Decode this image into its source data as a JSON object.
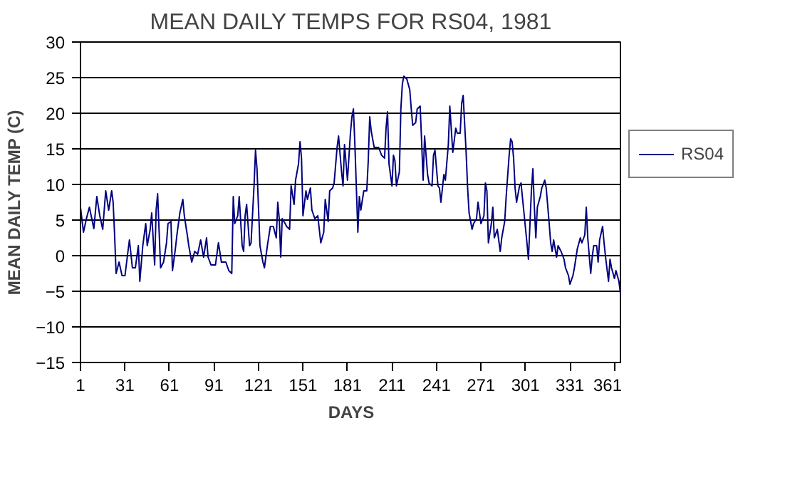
{
  "chart_data": {
    "type": "line",
    "title": "MEAN DAILY TEMPS FOR RS04, 1981",
    "xlabel": "DAYS",
    "ylabel": "MEAN DAILY TEMP (C)",
    "x": [
      1,
      3,
      5,
      7,
      9,
      10,
      12,
      14,
      16,
      18,
      20,
      22,
      23,
      24,
      25,
      27,
      29,
      31,
      33,
      34,
      36,
      38,
      40,
      41,
      43,
      45,
      46,
      48,
      49,
      51,
      52,
      53,
      55,
      57,
      59,
      60,
      62,
      63,
      65,
      66,
      68,
      70,
      71,
      73,
      74,
      76,
      78,
      80,
      82,
      84,
      86,
      87,
      89,
      92,
      94,
      96,
      99,
      101,
      103,
      104,
      105,
      107,
      108,
      110,
      111,
      112,
      113,
      115,
      116,
      118,
      119,
      120,
      121,
      122,
      124,
      125,
      127,
      129,
      131,
      133,
      134,
      135,
      136,
      137,
      139,
      140,
      142,
      143,
      145,
      146,
      148,
      149,
      150,
      151,
      153,
      154,
      156,
      157,
      159,
      161,
      163,
      165,
      166,
      168,
      169,
      171,
      172,
      174,
      175,
      177,
      178,
      179,
      181,
      183,
      184,
      185,
      186,
      188,
      189,
      190,
      192,
      194,
      195,
      196,
      197,
      199,
      202,
      204,
      206,
      207,
      208,
      209,
      211,
      212,
      213,
      214,
      216,
      217,
      218,
      219,
      221,
      223,
      224,
      225,
      227,
      228,
      230,
      231,
      232,
      233,
      235,
      236,
      238,
      239,
      240,
      242,
      243,
      244,
      246,
      247,
      249,
      250,
      252,
      254,
      255,
      257,
      258,
      259,
      261,
      262,
      263,
      265,
      266,
      268,
      269,
      271,
      273,
      274,
      275,
      276,
      278,
      279,
      280,
      282,
      284,
      285,
      287,
      288,
      290,
      291,
      292,
      293,
      294,
      295,
      297,
      298,
      300,
      302,
      303,
      305,
      306,
      307,
      308,
      309,
      311,
      312,
      314,
      315,
      317,
      318,
      319,
      320,
      322,
      323,
      325,
      327,
      328,
      330,
      331,
      333,
      334,
      336,
      338,
      339,
      341,
      342,
      343,
      345,
      346,
      347,
      349,
      350,
      351,
      353,
      354,
      355,
      357,
      358,
      359,
      361,
      362,
      364,
      365
    ],
    "series": [
      {
        "name": "RS04",
        "color": "#000080",
        "values": [
          6.8,
          3.3,
          5.2,
          6.8,
          4.8,
          3.8,
          8.3,
          5.6,
          3.7,
          9.1,
          6.4,
          9.1,
          7.5,
          2.9,
          -2.5,
          -0.9,
          -2.8,
          -2.8,
          0.6,
          2.2,
          -1.7,
          -1.7,
          1.4,
          -3.6,
          1.4,
          4.5,
          1.4,
          3.7,
          6.0,
          -1.3,
          6.4,
          8.7,
          -1.7,
          -0.9,
          1.8,
          4.5,
          4.8,
          -2.1,
          1.0,
          2.9,
          6.0,
          7.9,
          5.6,
          2.9,
          1.4,
          -0.9,
          0.6,
          0.2,
          2.2,
          -0.2,
          2.5,
          -0.2,
          -1.3,
          -1.3,
          1.8,
          -0.9,
          -0.9,
          -2.1,
          -2.5,
          8.3,
          4.5,
          5.6,
          8.3,
          1.4,
          0.6,
          5.6,
          7.2,
          1.4,
          1.8,
          9.8,
          14.8,
          12.2,
          6.8,
          1.4,
          -0.9,
          -1.7,
          1.4,
          4.1,
          4.1,
          2.5,
          7.5,
          5.2,
          -0.2,
          5.2,
          4.5,
          4.1,
          3.7,
          9.8,
          7.2,
          10.6,
          12.9,
          16.0,
          13.7,
          5.6,
          9.1,
          7.9,
          9.5,
          6.4,
          5.2,
          5.6,
          1.8,
          3.3,
          7.9,
          4.8,
          9.1,
          9.5,
          10.2,
          15.2,
          16.8,
          11.8,
          9.8,
          15.6,
          10.6,
          17.2,
          19.5,
          20.6,
          15.6,
          3.3,
          8.3,
          6.4,
          9.1,
          9.1,
          13.3,
          19.5,
          17.5,
          15.2,
          15.2,
          14.1,
          13.7,
          17.9,
          20.2,
          12.9,
          9.8,
          14.1,
          13.3,
          9.8,
          11.8,
          20.6,
          24.1,
          25.2,
          24.8,
          23.3,
          20.6,
          18.3,
          18.7,
          20.6,
          21.0,
          16.0,
          10.6,
          16.8,
          11.4,
          10.2,
          9.8,
          14.1,
          14.8,
          9.8,
          9.5,
          7.5,
          11.4,
          10.6,
          15.6,
          21.0,
          14.5,
          17.9,
          17.2,
          17.2,
          21.4,
          22.5,
          14.5,
          9.5,
          6.0,
          3.7,
          4.5,
          5.2,
          7.5,
          4.5,
          5.6,
          10.2,
          9.1,
          1.8,
          4.5,
          6.8,
          2.5,
          3.7,
          0.6,
          2.5,
          4.8,
          8.3,
          14.1,
          16.4,
          16.0,
          13.7,
          9.5,
          7.5,
          9.8,
          10.2,
          6.0,
          1.8,
          -0.5,
          9.1,
          12.2,
          6.8,
          2.5,
          6.8,
          8.3,
          9.5,
          10.6,
          9.5,
          4.5,
          1.8,
          0.6,
          2.2,
          -0.2,
          1.4,
          0.6,
          -0.5,
          -1.7,
          -2.8,
          -4.0,
          -2.8,
          -1.7,
          1.0,
          2.5,
          1.8,
          2.9,
          6.8,
          2.5,
          -2.5,
          -0.2,
          1.4,
          1.4,
          -0.9,
          2.2,
          4.1,
          1.8,
          -0.2,
          -3.6,
          -0.5,
          -1.7,
          -3.2,
          -2.1,
          -3.6,
          -5.2
        ]
      }
    ],
    "xlim": [
      1,
      366
    ],
    "xticks": [
      1,
      31,
      61,
      91,
      121,
      151,
      181,
      211,
      241,
      271,
      301,
      331,
      361
    ],
    "ylim": [
      -15,
      30
    ],
    "yticks": [
      -15,
      -10,
      -5,
      0,
      5,
      10,
      15,
      20,
      25,
      30
    ],
    "grid": "y",
    "legend": "right",
    "marker": "none",
    "line_style": "solid"
  }
}
